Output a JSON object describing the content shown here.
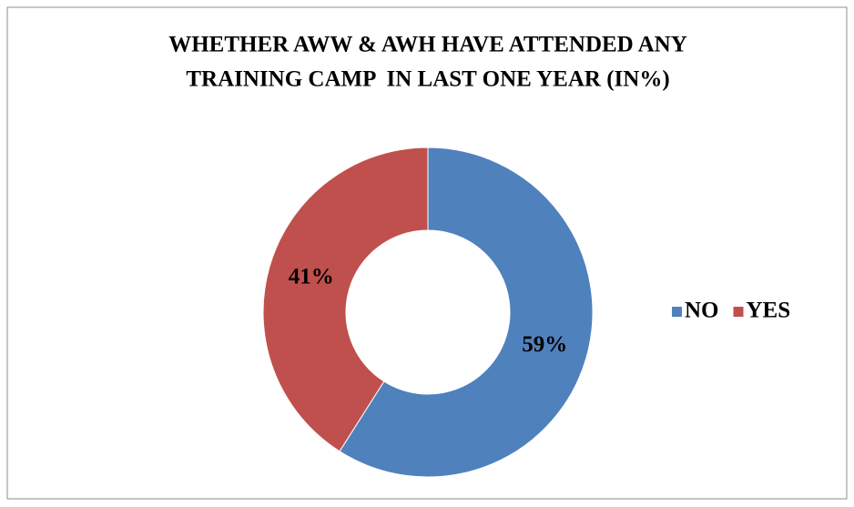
{
  "chart_data": {
    "type": "donut",
    "title": [
      "WHETHER AWW & AWH HAVE ATTENDED ANY",
      "TRAINING CAMP  IN LAST ONE YEAR (IN%)"
    ],
    "categories": [
      "NO",
      "YES"
    ],
    "values": [
      59,
      41
    ],
    "value_labels": [
      "59%",
      "41%"
    ],
    "colors": [
      "#4f81bd",
      "#c0504d"
    ],
    "legend": "right"
  }
}
